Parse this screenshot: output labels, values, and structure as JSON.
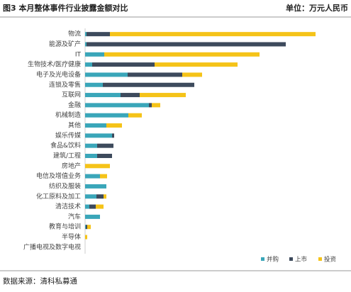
{
  "title": "图3 本月整体事件行业披露金额对比",
  "unit": "单位：万元人民币",
  "source": "数据来源：清科私募通",
  "chart_data": {
    "type": "bar",
    "orientation": "horizontal",
    "stacked": true,
    "categories": [
      "物流",
      "能源及矿产",
      "IT",
      "生物技术/医疗健康",
      "电子及光电设备",
      "连锁及零售",
      "互联网",
      "金融",
      "机械制造",
      "其他",
      "娱乐传媒",
      "食品&饮料",
      "建筑/工程",
      "房地产",
      "电信及增值业务",
      "纺织及服装",
      "化工原料及加工",
      "清洁技术",
      "汽车",
      "教育与培训",
      "半导体",
      "广播电视及数字电视"
    ],
    "series": [
      {
        "name": "并购",
        "color": "#3aa6b9",
        "values": [
          2,
          2,
          27,
          10,
          60,
          25,
          50,
          90,
          61,
          30,
          38,
          17,
          17,
          0,
          21,
          30,
          16,
          6,
          21,
          1,
          0,
          0
        ]
      },
      {
        "name": "上市",
        "color": "#3d4a5c",
        "values": [
          33,
          281,
          0,
          88,
          77,
          129,
          27,
          4,
          0,
          0,
          3,
          23,
          21,
          0,
          0,
          0,
          10,
          9,
          0,
          2,
          0,
          0
        ]
      },
      {
        "name": "投资",
        "color": "#f5c318",
        "values": [
          290,
          0,
          219,
          117,
          28,
          0,
          65,
          12,
          19,
          22,
          0,
          0,
          0,
          35,
          10,
          0,
          4,
          11,
          0,
          5,
          3,
          0
        ]
      }
    ],
    "xlim": [
      0,
      330
    ],
    "legend": "bottom-right"
  }
}
